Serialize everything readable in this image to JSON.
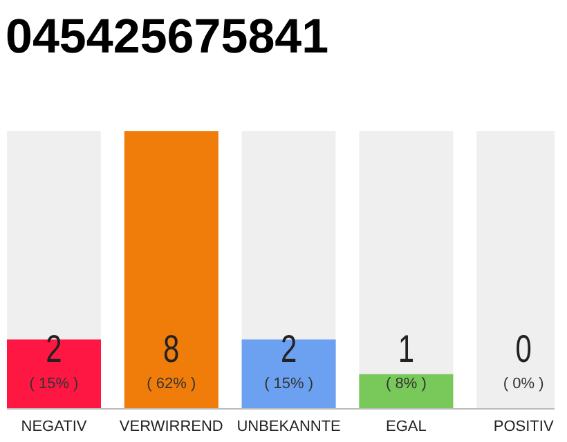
{
  "chart_data": {
    "type": "bar",
    "title": "045425675841",
    "categories": [
      "NEGATIV",
      "VERWIRREND",
      "UNBEKANNTE",
      "EGAL",
      "POSITIV"
    ],
    "values": [
      2,
      8,
      2,
      1,
      0
    ],
    "colors": [
      "#ff1744",
      "#f07d0a",
      "#6ca0f0",
      "#79c85a",
      "#cccccc"
    ],
    "tick_labels": "x",
    "data_labels": true,
    "grid": false,
    "annotations": [
      "( 15% )",
      "( 62% )",
      "( 15% )",
      "( 8% )",
      "( 0% )"
    ]
  }
}
